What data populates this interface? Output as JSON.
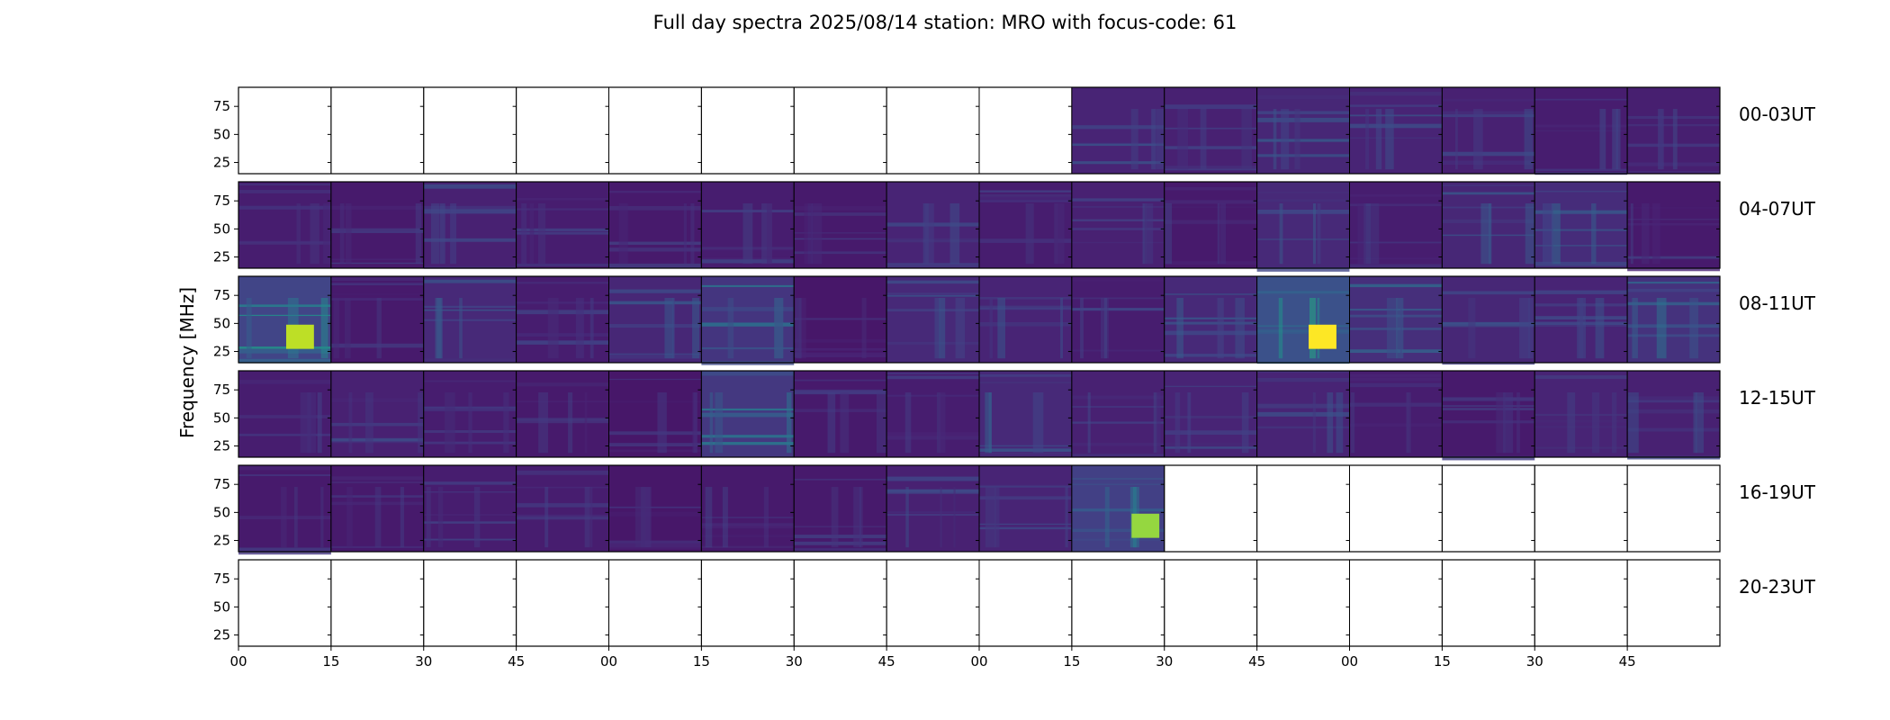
{
  "chart_data": {
    "type": "heatmap",
    "title": "Full day spectra 2025/08/14 station: MRO with focus-code: 61",
    "ylabel": "Frequency [MHz]",
    "xlabel": "",
    "ylim": [
      15,
      92
    ],
    "yticks": [
      25,
      50,
      75
    ],
    "xticks": [
      "00",
      "15",
      "30",
      "45",
      "00",
      "15",
      "30",
      "45",
      "00",
      "15",
      "30",
      "45",
      "00",
      "15",
      "30",
      "45"
    ],
    "colormap": "viridis",
    "rows": [
      {
        "label": "00-03UT",
        "intensity": [
          0,
          0,
          0,
          0,
          0,
          0,
          0,
          0,
          0,
          0.22,
          0.2,
          0.24,
          0.22,
          0.2,
          0.18,
          0.19
        ]
      },
      {
        "label": "04-07UT",
        "intensity": [
          0.18,
          0.16,
          0.2,
          0.18,
          0.16,
          0.18,
          0.16,
          0.22,
          0.18,
          0.2,
          0.16,
          0.26,
          0.18,
          0.24,
          0.28,
          0.16
        ]
      },
      {
        "label": "08-11UT",
        "intensity": [
          0.45,
          0.16,
          0.26,
          0.18,
          0.24,
          0.34,
          0.14,
          0.26,
          0.22,
          0.18,
          0.26,
          0.55,
          0.3,
          0.24,
          0.22,
          0.32
        ]
      },
      {
        "label": "12-15UT",
        "intensity": [
          0.18,
          0.2,
          0.18,
          0.16,
          0.14,
          0.36,
          0.16,
          0.18,
          0.26,
          0.2,
          0.22,
          0.22,
          0.18,
          0.16,
          0.22,
          0.2
        ]
      },
      {
        "label": "16-19UT",
        "intensity": [
          0.16,
          0.16,
          0.18,
          0.18,
          0.14,
          0.16,
          0.16,
          0.2,
          0.22,
          0.42,
          0,
          0,
          0,
          0,
          0,
          0
        ]
      },
      {
        "label": "20-23UT",
        "intensity": [
          0,
          0,
          0,
          0,
          0,
          0,
          0,
          0,
          0,
          0,
          0,
          0,
          0,
          0,
          0,
          0
        ]
      }
    ]
  },
  "colors": {
    "viridis": [
      "#440154",
      "#482475",
      "#414487",
      "#355f8d",
      "#2a788e",
      "#21918c",
      "#22a884",
      "#44bf70",
      "#7ad151",
      "#bddf26",
      "#fde725"
    ],
    "background": "#ffffff",
    "axis": "#000000"
  }
}
